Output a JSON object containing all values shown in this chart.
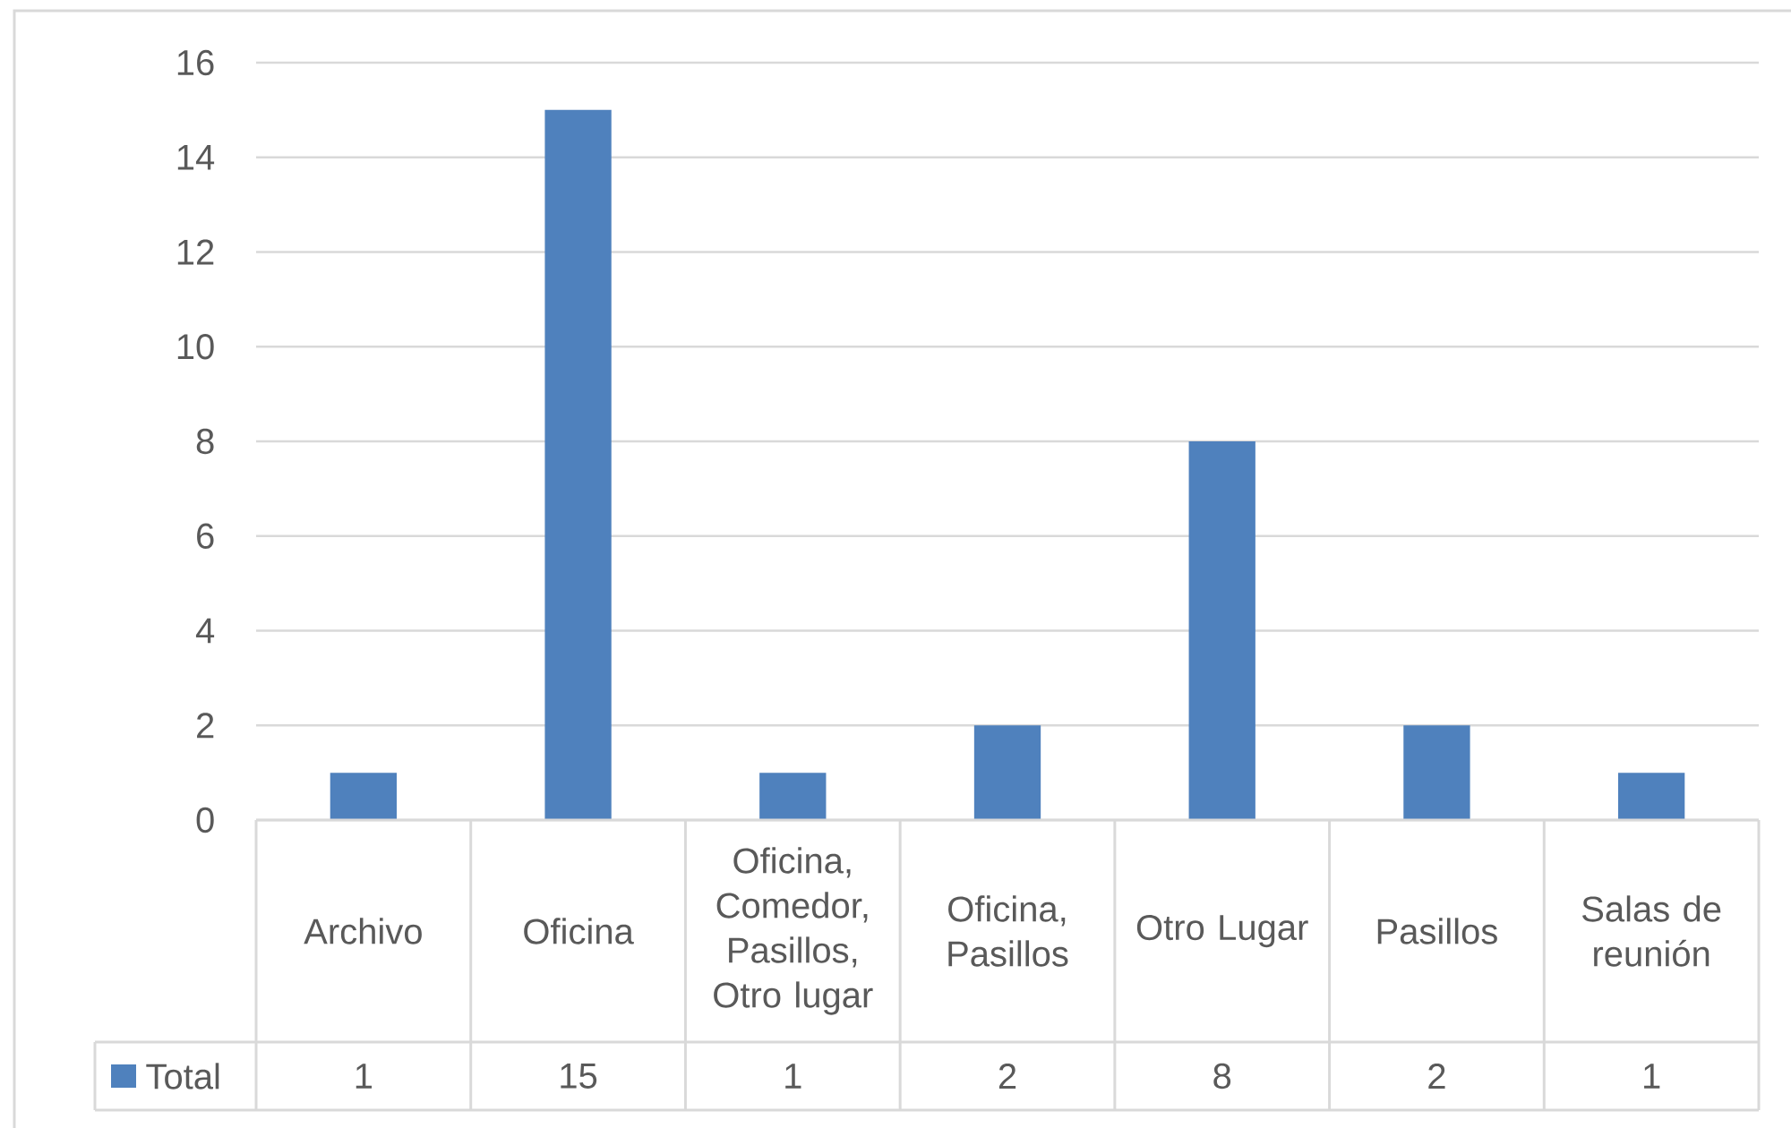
{
  "chart_data": {
    "type": "bar",
    "categories": [
      "Archivo",
      "Oficina",
      "Oficina, Comedor, Pasillos, Otro lugar",
      "Oficina, Pasillos",
      "Otro Lugar",
      "Pasillos",
      "Salas de reunión"
    ],
    "series": [
      {
        "name": "Total",
        "color": "#4f81bd",
        "values": [
          1,
          15,
          1,
          2,
          8,
          2,
          1
        ]
      }
    ],
    "ylim": [
      0,
      16
    ],
    "yticks": [
      0,
      2,
      4,
      6,
      8,
      10,
      12,
      14,
      16
    ],
    "grid": "y",
    "data_labels": true,
    "legend": "bottom"
  }
}
